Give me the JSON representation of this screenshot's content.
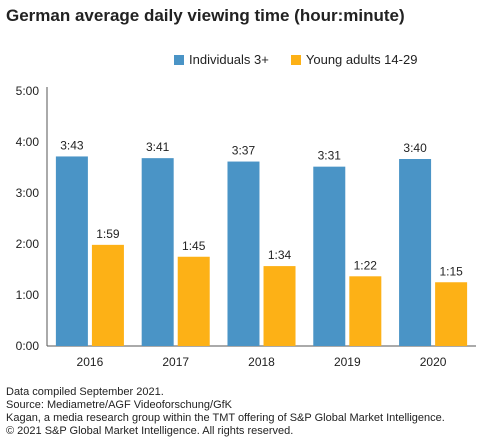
{
  "title": "German average daily viewing time (hour:minute)",
  "chart_data": {
    "type": "bar",
    "categories": [
      "2016",
      "2017",
      "2018",
      "2019",
      "2020"
    ],
    "series": [
      {
        "name": "Individuals 3+",
        "color": "#4a94c6",
        "values": [
          "3:43",
          "3:41",
          "3:37",
          "3:31",
          "3:40"
        ]
      },
      {
        "name": "Young adults 14-29",
        "color": "#fdb116",
        "values": [
          "1:59",
          "1:45",
          "1:34",
          "1:22",
          "1:15"
        ]
      }
    ],
    "yticks": [
      "0:00",
      "1:00",
      "2:00",
      "3:00",
      "4:00",
      "5:00"
    ],
    "ylim": [
      "0:00",
      "5:00"
    ],
    "grid": false,
    "legend_position": "top"
  },
  "footer": {
    "line1": "Data compiled September 2021.",
    "line2": "Source: Mediametre/AGF Videoforschung/GfK",
    "line3": "Kagan, a media research group within the TMT offering of S&P Global Market Intelligence.",
    "line4": "© 2021 S&P Global Market Intelligence. All rights reserved."
  }
}
